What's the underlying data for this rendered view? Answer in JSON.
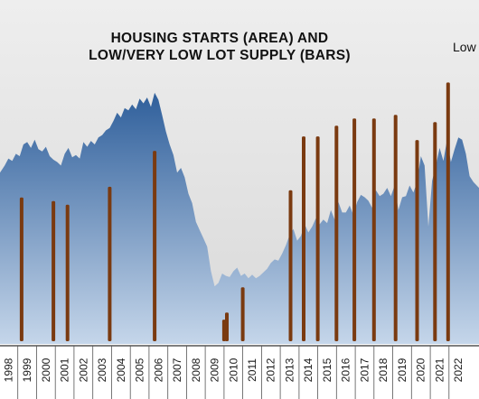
{
  "chart_data": {
    "type": "area",
    "title_lines": [
      "HOUSING STARTS (AREA) AND",
      "LOW/VERY LOW LOT SUPPLY (BARS)"
    ],
    "annotation": "Low",
    "xlabel": "",
    "ylabel": "",
    "x_range": [
      1997.55,
      2023.1
    ],
    "x_ticks": [
      1998,
      1999,
      2000,
      2001,
      2002,
      2003,
      2004,
      2005,
      2006,
      2007,
      2008,
      2009,
      2010,
      2011,
      2012,
      2013,
      2014,
      2015,
      2016,
      2017,
      2018,
      2019,
      2020,
      2021,
      2022
    ],
    "x_tick_labels": [
      "1998",
      "1999",
      "2000",
      "2001",
      "2002",
      "2003",
      "2004",
      "2005",
      "2006",
      "2007",
      "2008",
      "2009",
      "2010",
      "2011",
      "2012",
      "2013",
      "2014",
      "2015",
      "2016",
      "2017",
      "2018",
      "2019",
      "2020",
      "2021",
      "2022"
    ],
    "area_series": {
      "x": [
        1997.55,
        1997.8,
        1998.0,
        1998.2,
        1998.4,
        1998.6,
        1998.8,
        1999.0,
        1999.2,
        1999.4,
        1999.6,
        1999.8,
        2000.0,
        2000.2,
        2000.4,
        2000.6,
        2000.8,
        2001.0,
        2001.2,
        2001.4,
        2001.6,
        2001.8,
        2002.0,
        2002.2,
        2002.4,
        2002.6,
        2002.8,
        2003.0,
        2003.2,
        2003.4,
        2003.6,
        2003.8,
        2004.0,
        2004.2,
        2004.4,
        2004.6,
        2004.8,
        2005.0,
        2005.2,
        2005.4,
        2005.6,
        2005.8,
        2006.0,
        2006.2,
        2006.4,
        2006.6,
        2006.8,
        2007.0,
        2007.2,
        2007.4,
        2007.6,
        2007.8,
        2008.0,
        2008.2,
        2008.4,
        2008.6,
        2008.8,
        2009.0,
        2009.2,
        2009.4,
        2009.6,
        2009.8,
        2010.0,
        2010.2,
        2010.4,
        2010.6,
        2010.8,
        2011.0,
        2011.2,
        2011.4,
        2011.6,
        2011.8,
        2012.0,
        2012.2,
        2012.4,
        2012.6,
        2012.8,
        2013.0,
        2013.2,
        2013.4,
        2013.6,
        2013.8,
        2014.0,
        2014.2,
        2014.4,
        2014.6,
        2014.8,
        2015.0,
        2015.2,
        2015.4,
        2015.6,
        2015.8,
        2016.0,
        2016.2,
        2016.4,
        2016.6,
        2016.8,
        2017.0,
        2017.2,
        2017.4,
        2017.6,
        2017.8,
        2018.0,
        2018.2,
        2018.4,
        2018.6,
        2018.8,
        2019.0,
        2019.2,
        2019.4,
        2019.6,
        2019.8,
        2020.0,
        2020.2,
        2020.4,
        2020.6,
        2020.8,
        2021.0,
        2021.2,
        2021.4,
        2021.6,
        2021.8,
        2022.0,
        2022.2,
        2022.4,
        2022.6,
        2022.8,
        2023.1
      ],
      "y": [
        1.46,
        1.52,
        1.58,
        1.56,
        1.62,
        1.6,
        1.7,
        1.72,
        1.67,
        1.74,
        1.66,
        1.64,
        1.68,
        1.6,
        1.57,
        1.55,
        1.52,
        1.62,
        1.67,
        1.59,
        1.61,
        1.58,
        1.72,
        1.68,
        1.73,
        1.7,
        1.76,
        1.78,
        1.82,
        1.84,
        1.9,
        1.97,
        1.93,
        2.01,
        1.99,
        2.04,
        2.0,
        2.09,
        2.05,
        2.1,
        2.02,
        2.14,
        2.08,
        1.95,
        1.81,
        1.7,
        1.61,
        1.46,
        1.5,
        1.42,
        1.28,
        1.2,
        1.04,
        0.97,
        0.9,
        0.83,
        0.62,
        0.49,
        0.52,
        0.6,
        0.58,
        0.57,
        0.62,
        0.65,
        0.58,
        0.6,
        0.56,
        0.59,
        0.56,
        0.58,
        0.61,
        0.64,
        0.69,
        0.72,
        0.71,
        0.77,
        0.84,
        0.93,
        0.98,
        0.88,
        0.92,
        1.02,
        0.95,
        1.0,
        1.07,
        1.02,
        1.06,
        1.03,
        1.14,
        1.06,
        1.21,
        1.12,
        1.12,
        1.18,
        1.1,
        1.21,
        1.27,
        1.25,
        1.22,
        1.16,
        1.31,
        1.26,
        1.28,
        1.33,
        1.26,
        1.35,
        1.14,
        1.25,
        1.26,
        1.35,
        1.29,
        1.38,
        1.6,
        1.52,
        1.0,
        1.39,
        1.52,
        1.67,
        1.56,
        1.74,
        1.55,
        1.66,
        1.76,
        1.74,
        1.62,
        1.43,
        1.38,
        1.33
      ],
      "ylim": [
        0,
        2.5
      ]
    },
    "bar_series": {
      "x": [
        1998.7,
        2000.4,
        2001.15,
        2003.4,
        2005.8,
        2009.5,
        2009.65,
        2010.5,
        2013.05,
        2013.75,
        2014.5,
        2015.5,
        2016.45,
        2017.5,
        2018.65,
        2019.8,
        2020.75,
        2021.45
      ],
      "values": [
        0.8,
        0.78,
        0.76,
        0.86,
        1.06,
        0.12,
        0.16,
        0.3,
        0.84,
        1.14,
        1.14,
        1.2,
        1.24,
        1.24,
        1.26,
        1.12,
        1.22,
        1.44
      ],
      "ylim": [
        0,
        1.55
      ]
    },
    "colors": {
      "area_top": "#2f5f9b",
      "area_bottom": "#c5d6ea",
      "bar": "#7a3a10",
      "background_top": "#eeeeee",
      "background_bottom": "#d9d9d9"
    },
    "grid": false,
    "legend": "none"
  }
}
